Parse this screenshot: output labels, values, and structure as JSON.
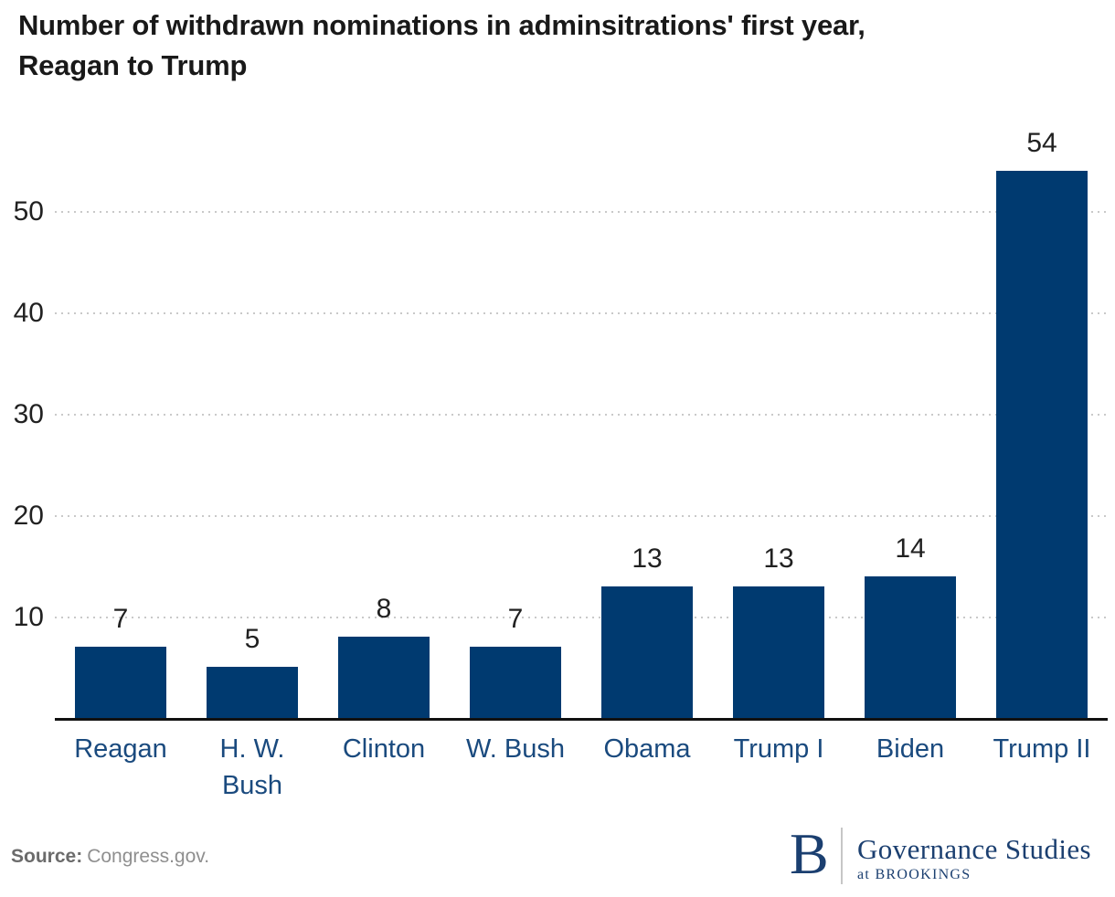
{
  "header": {
    "title_line1": "Number of withdrawn nominations in adminsitrations' first year,",
    "title_line2": "Reagan to Trump"
  },
  "chart_data": {
    "type": "bar",
    "title": "Number of withdrawn nominations in adminsitrations' first year, Reagan to Trump",
    "categories": [
      "Reagan",
      "H. W. Bush",
      "Clinton",
      "W. Bush",
      "Obama",
      "Trump I",
      "Biden",
      "Trump II"
    ],
    "category_display": [
      "Reagan",
      "H. W.\nBush",
      "Clinton",
      "W. Bush",
      "Obama",
      "Trump I",
      "Biden",
      "Trump II"
    ],
    "values": [
      7,
      5,
      8,
      7,
      13,
      13,
      14,
      54
    ],
    "value_labels": [
      "7",
      "5",
      "8",
      "7",
      "13",
      "13",
      "14",
      "54"
    ],
    "xlabel": "",
    "ylabel": "",
    "ylim": [
      0,
      58
    ],
    "yticks": [
      10,
      20,
      30,
      40,
      50
    ],
    "grid": "horizontal-dotted",
    "legend": "none",
    "colors": {
      "bar": "#003A70",
      "category_label": "#1A4A7E",
      "value_label": "#212121",
      "tick_label": "#212121",
      "gridline": "#c9c9c9",
      "baseline": "#111111"
    }
  },
  "source": {
    "label": "Source:",
    "text": "Congress.gov."
  },
  "logo": {
    "mark": "B",
    "program": "Governance Studies",
    "sub": "at BROOKINGS",
    "color": "#1B3F70"
  }
}
